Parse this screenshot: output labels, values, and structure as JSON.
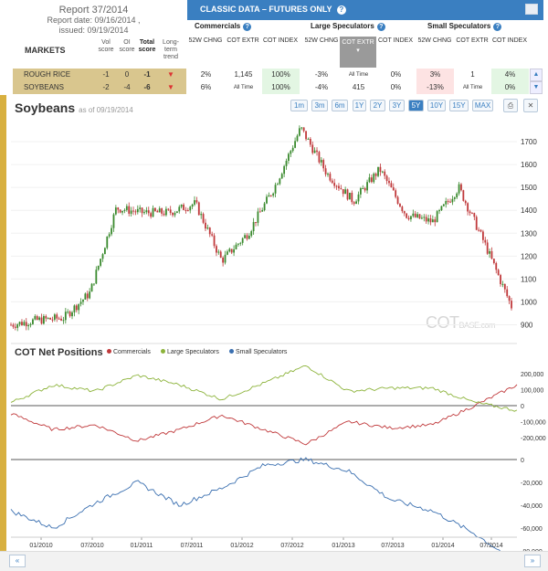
{
  "report": {
    "title": "Report 37/2014",
    "report_date": "Report date: 09/16/2014 ,",
    "issued": "issued: 09/19/2014"
  },
  "markets_header": {
    "markets": "MARKETS",
    "vol_score": "Vol score",
    "oi_score": "OI score",
    "total_score": "Total score",
    "long_term_trend": "Long-term trend"
  },
  "classic": {
    "title": "CLASSIC DATA – FUTURES ONLY",
    "help": "?"
  },
  "groups": {
    "commercials": "Commercials",
    "large": "Large Speculators",
    "small": "Small Speculators"
  },
  "subheaders": {
    "chng": "52W CHNG",
    "extr": "COT EXTR",
    "index": "COT INDEX"
  },
  "rows": [
    {
      "name": "ROUGH RICE",
      "vol": "-1",
      "oi": "0",
      "total": "-1",
      "trend": "▼",
      "c_chng": "2%",
      "c_extr": "1,145",
      "c_index": "100%",
      "l_chng": "-3%",
      "l_extr": "All Time",
      "l_index": "0%",
      "s_chng": "3%",
      "s_extr": "1",
      "s_index": "4%"
    },
    {
      "name": "SOYBEANS",
      "vol": "-2",
      "oi": "-4",
      "total": "-6",
      "trend": "▼",
      "c_chng": "6%",
      "c_extr": "All Time",
      "c_index": "100%",
      "l_chng": "-4%",
      "l_extr": "415",
      "l_index": "0%",
      "s_chng": "-13%",
      "s_extr": "All Time",
      "s_index": "0%"
    }
  ],
  "chart": {
    "title": "Soybeans",
    "as_of": "as of 09/19/2014",
    "ranges": [
      "1m",
      "3m",
      "6m",
      "1Y",
      "2Y",
      "3Y",
      "5Y",
      "10Y",
      "15Y",
      "MAX"
    ],
    "active_range": "5Y",
    "watermark_main": "COT",
    "watermark_sub": "BASE.com",
    "cot_title": "COT Net Positions",
    "legend": [
      {
        "name": "Commercials",
        "color": "#c0393b"
      },
      {
        "name": "Large Speculators",
        "color": "#8cb33a"
      },
      {
        "name": "Small Speculators",
        "color": "#3a6fb0"
      }
    ],
    "nav_prev": "«",
    "nav_next": "»"
  },
  "chart_data": [
    {
      "type": "candlestick",
      "title": "Soybeans",
      "y_ticks": [
        "900",
        "1000",
        "1100",
        "1200",
        "1300",
        "1400",
        "1500",
        "1600",
        "1700"
      ],
      "ylim": [
        850,
        1800
      ],
      "x": [
        0,
        3,
        6,
        9,
        12,
        15,
        18,
        21,
        24,
        27,
        30,
        33,
        36,
        39,
        42,
        45,
        48,
        51,
        54,
        57
      ],
      "close": [
        900,
        920,
        930,
        1040,
        1410,
        1390,
        1390,
        1430,
        1180,
        1300,
        1500,
        1760,
        1560,
        1440,
        1580,
        1380,
        1350,
        1500,
        1250,
        980
      ]
    },
    {
      "type": "line",
      "title": "COT Net Positions",
      "x_ticks": [
        "01/2010",
        "07/2010",
        "01/2011",
        "07/2011",
        "01/2012",
        "07/2012",
        "01/2013",
        "07/2013",
        "01/2014",
        "07/2014"
      ],
      "y_ticks_top": [
        "200,000",
        "100,000",
        "0",
        "-100,000",
        "-200,000"
      ],
      "y_ticks_bottom": [
        "0",
        "-20,000",
        "-40,000",
        "-60,000",
        "-80,000"
      ],
      "series": [
        {
          "name": "Commercials",
          "values": [
            -50000,
            -150000,
            -120000,
            -220000,
            -150000,
            -60000,
            -150000,
            -240000,
            -100000,
            -140000,
            -120000,
            0,
            130000
          ]
        },
        {
          "name": "Large Speculators",
          "values": [
            20000,
            130000,
            90000,
            190000,
            130000,
            40000,
            140000,
            250000,
            90000,
            110000,
            110000,
            20000,
            -30000
          ]
        },
        {
          "name": "Small Speculators",
          "values": [
            -45000,
            -60000,
            -38000,
            -20000,
            -40000,
            -25000,
            -5000,
            0,
            -10000,
            -35000,
            -45000,
            -65000,
            -90000
          ]
        }
      ]
    }
  ]
}
